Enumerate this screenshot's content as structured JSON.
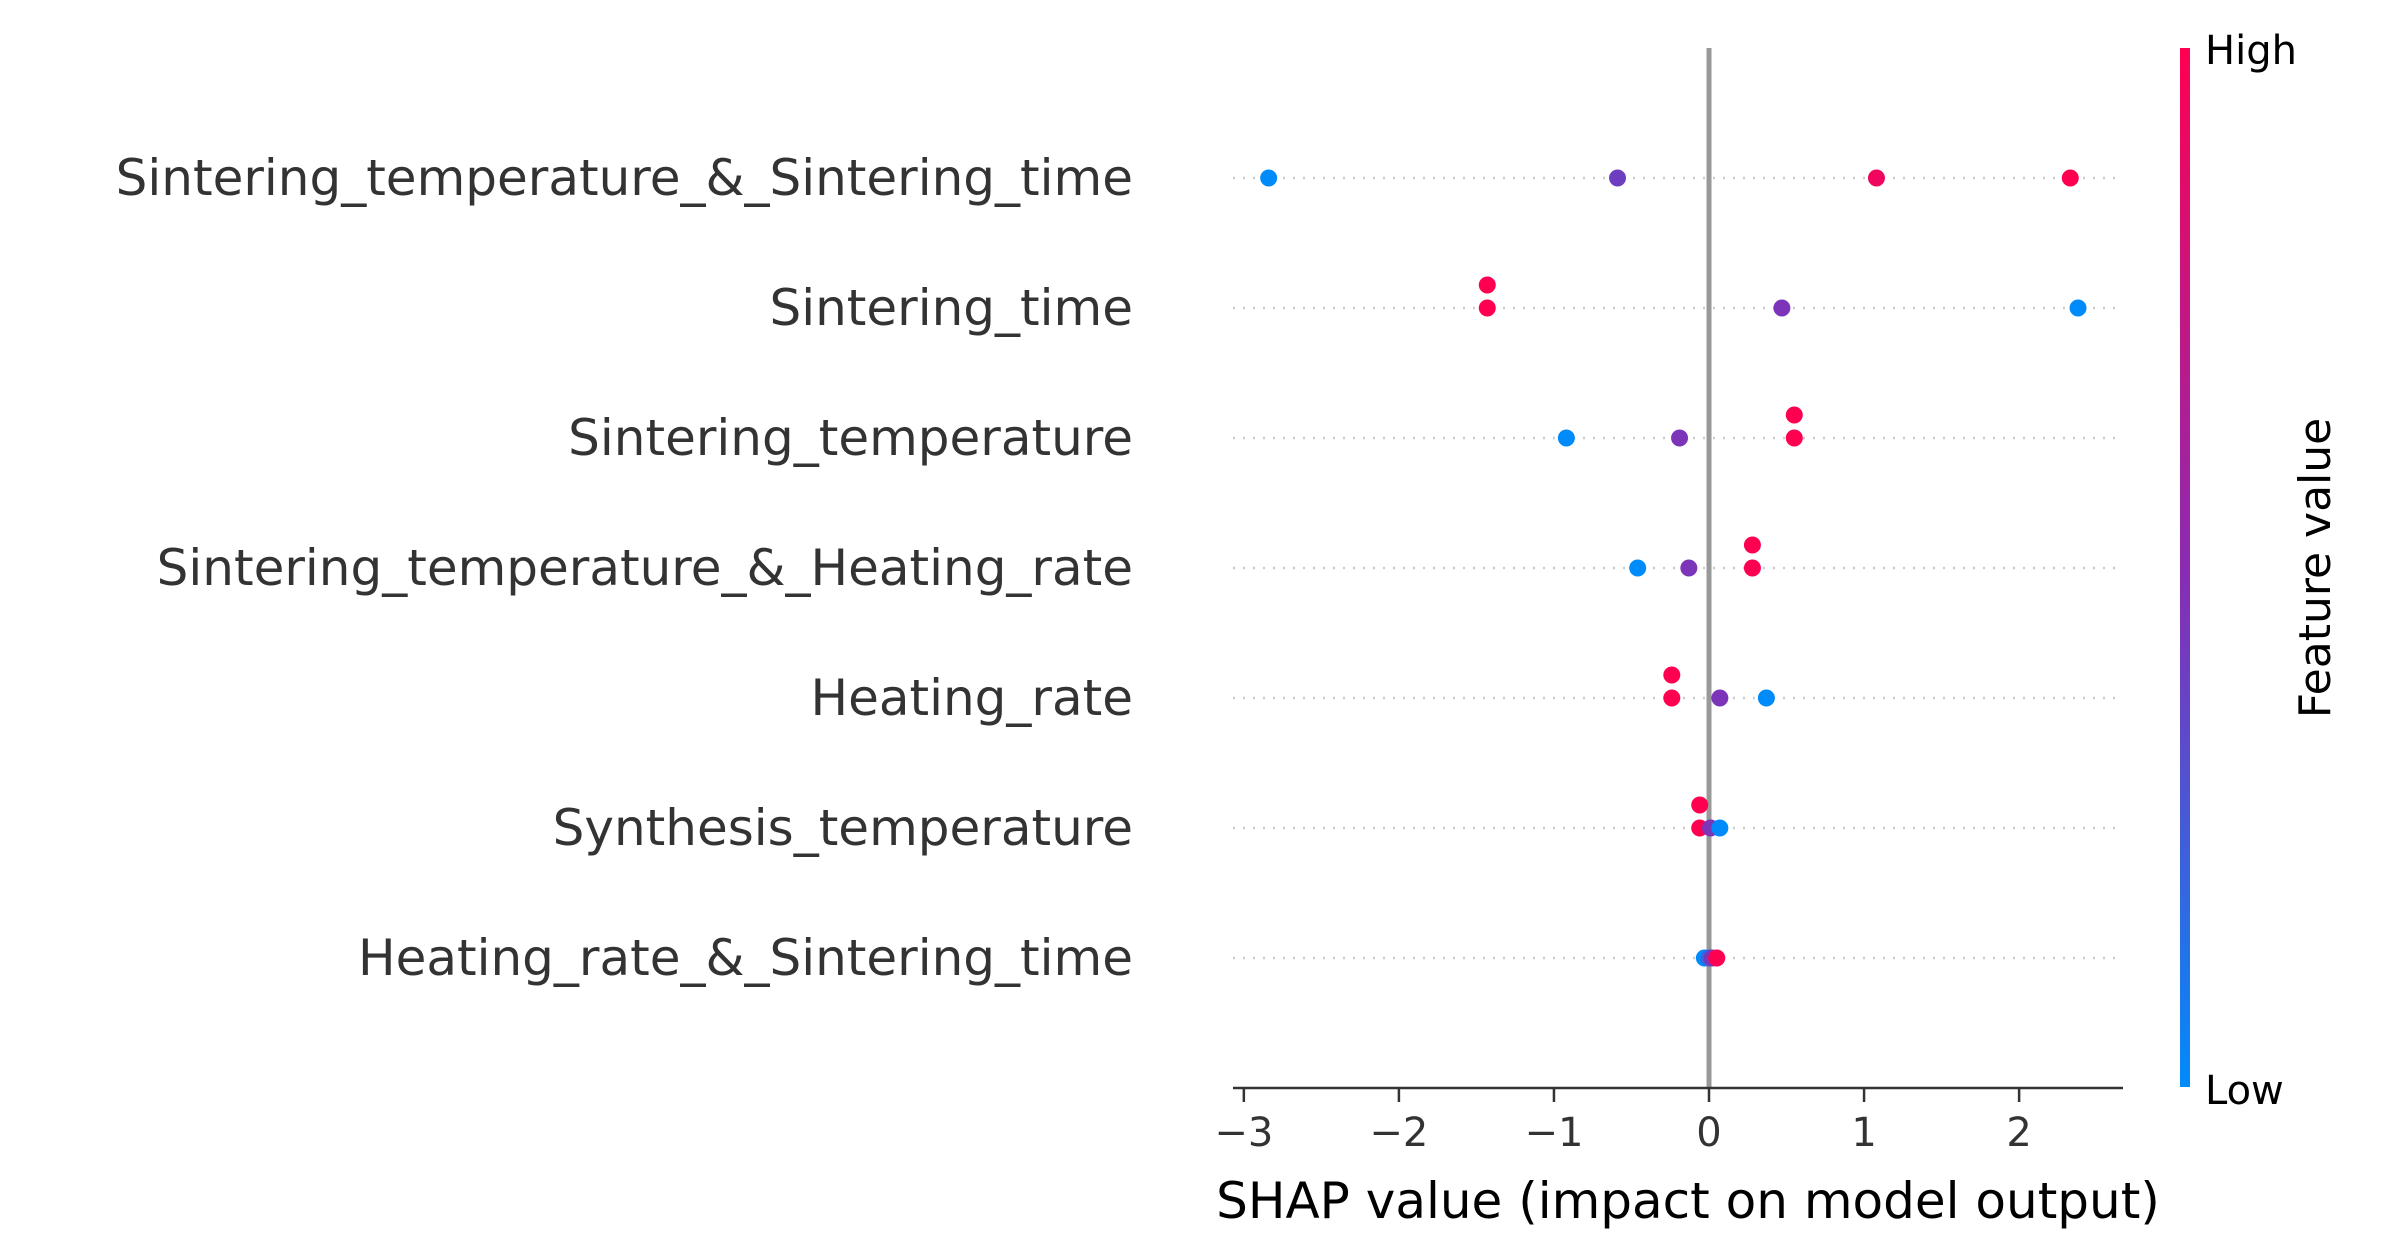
{
  "chart_data": {
    "type": "scatter",
    "title": "",
    "xlabel": "SHAP value (impact on model output)",
    "ylabel": "",
    "xlim": [
      -3.07,
      2.67
    ],
    "xticks": [
      -3,
      -2,
      -1,
      0,
      1,
      2
    ],
    "xtick_labels": [
      "−3",
      "−2",
      "−1",
      "0",
      "1",
      "2"
    ],
    "grid": false,
    "features": [
      "Sintering_temperature_&_Sintering_time",
      "Sintering_time",
      "Sintering_temperature",
      "Sintering_temperature_&_Heating_rate",
      "Heating_rate",
      "Synthesis_temperature",
      "Heating_rate_&_Sintering_time"
    ],
    "points": [
      {
        "feature": 0,
        "x": -2.84,
        "lane": 0,
        "value": 0.0
      },
      {
        "feature": 0,
        "x": -0.59,
        "lane": 0,
        "value": 0.4
      },
      {
        "feature": 0,
        "x": 1.08,
        "lane": 0,
        "value": 0.93
      },
      {
        "feature": 0,
        "x": 2.33,
        "lane": 0,
        "value": 1.0
      },
      {
        "feature": 1,
        "x": -1.43,
        "lane": -1,
        "value": 1.0
      },
      {
        "feature": 1,
        "x": -1.43,
        "lane": 0,
        "value": 1.0
      },
      {
        "feature": 1,
        "x": 0.47,
        "lane": 0,
        "value": 0.45
      },
      {
        "feature": 1,
        "x": 2.38,
        "lane": 0,
        "value": 0.0
      },
      {
        "feature": 2,
        "x": 0.55,
        "lane": -1,
        "value": 1.0
      },
      {
        "feature": 2,
        "x": -0.92,
        "lane": 0,
        "value": 0.0
      },
      {
        "feature": 2,
        "x": -0.19,
        "lane": 0,
        "value": 0.45
      },
      {
        "feature": 2,
        "x": 0.55,
        "lane": 0,
        "value": 1.0
      },
      {
        "feature": 3,
        "x": 0.28,
        "lane": -1,
        "value": 1.0
      },
      {
        "feature": 3,
        "x": -0.46,
        "lane": 0,
        "value": 0.0
      },
      {
        "feature": 3,
        "x": -0.13,
        "lane": 0,
        "value": 0.45
      },
      {
        "feature": 3,
        "x": 0.28,
        "lane": 0,
        "value": 1.0
      },
      {
        "feature": 4,
        "x": -0.24,
        "lane": -1,
        "value": 1.0
      },
      {
        "feature": 4,
        "x": -0.24,
        "lane": 0,
        "value": 1.0
      },
      {
        "feature": 4,
        "x": 0.07,
        "lane": 0,
        "value": 0.45
      },
      {
        "feature": 4,
        "x": 0.37,
        "lane": 0,
        "value": 0.0
      },
      {
        "feature": 5,
        "x": -0.06,
        "lane": -1,
        "value": 1.0
      },
      {
        "feature": 5,
        "x": -0.06,
        "lane": 0,
        "value": 1.0
      },
      {
        "feature": 5,
        "x": 0.01,
        "lane": 0,
        "value": 0.45
      },
      {
        "feature": 5,
        "x": 0.07,
        "lane": 0,
        "value": 0.0
      },
      {
        "feature": 6,
        "x": -0.03,
        "lane": 0,
        "value": 0.0
      },
      {
        "feature": 6,
        "x": 0.0,
        "lane": 0,
        "value": 0.2
      },
      {
        "feature": 6,
        "x": 0.02,
        "lane": 0,
        "value": 0.45
      },
      {
        "feature": 6,
        "x": 0.05,
        "lane": 0,
        "value": 1.0
      }
    ],
    "colorbar": {
      "title": "Feature value",
      "high_label": "High",
      "low_label": "Low",
      "low_color": "#008bfb",
      "mid_color": "#8a2bb2",
      "high_color": "#ff0051"
    }
  }
}
